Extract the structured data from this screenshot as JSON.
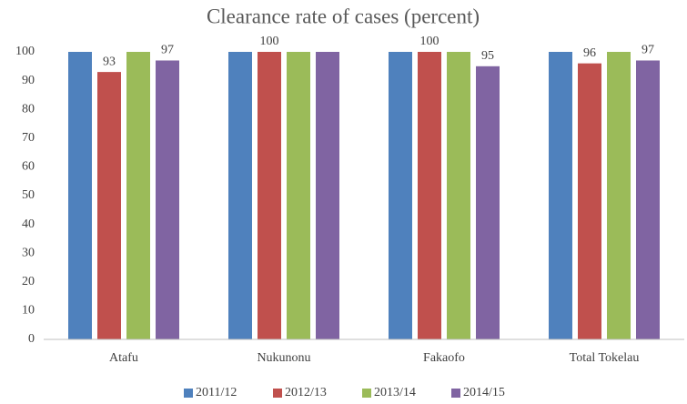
{
  "chart_data": {
    "type": "bar",
    "title": "Clearance rate of cases (percent)",
    "categories": [
      "Atafu",
      "Nukunonu",
      "Fakaofo",
      "Total Tokelau"
    ],
    "series": [
      {
        "name": "2011/12",
        "color": "#4f81bd",
        "values": [
          100,
          100,
          100,
          100
        ],
        "value_labels": [
          null,
          null,
          null,
          null
        ]
      },
      {
        "name": "2012/13",
        "color": "#c0504d",
        "values": [
          93,
          100,
          100,
          96
        ],
        "value_labels": [
          "93",
          "100",
          "100",
          "96"
        ]
      },
      {
        "name": "2013/14",
        "color": "#9bbb59",
        "values": [
          100,
          100,
          100,
          100
        ],
        "value_labels": [
          null,
          null,
          null,
          null
        ]
      },
      {
        "name": "2014/15",
        "color": "#8064a2",
        "values": [
          97,
          100,
          95,
          97
        ],
        "value_labels": [
          "97",
          null,
          "95",
          "97"
        ]
      }
    ],
    "ylim": [
      0,
      100
    ],
    "yticks": [
      0,
      10,
      20,
      30,
      40,
      50,
      60,
      70,
      80,
      90,
      100
    ],
    "grid": false,
    "legend": "bottom"
  }
}
